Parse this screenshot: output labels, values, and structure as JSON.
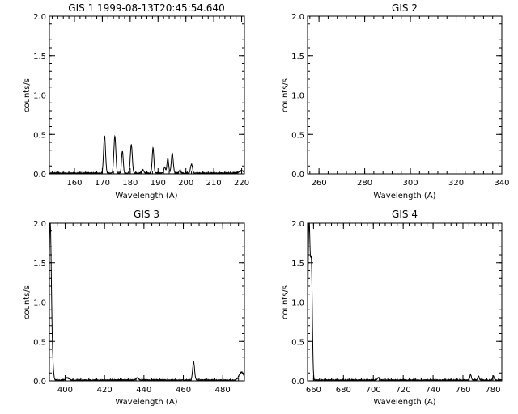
{
  "figure": {
    "background": "#ffffff",
    "ink": "#000000"
  },
  "chart_data": [
    {
      "type": "line",
      "title": "GIS 1 1999-08-13T20:45:54.640",
      "xlabel": "Wavelength (A)",
      "ylabel": "counts/s",
      "xlim": [
        151,
        221
      ],
      "ylim": [
        0,
        2.0
      ],
      "xticks": [
        160,
        170,
        180,
        190,
        200,
        210,
        220
      ],
      "yticks": [
        0.0,
        0.5,
        1.0,
        1.5,
        2.0
      ],
      "ytick_labels": [
        "0.0",
        "0.5",
        "1.0",
        "1.5",
        "2.0"
      ],
      "grid": false,
      "series": [
        {
          "baseline": 0.01,
          "peaks": [
            {
              "x": 170.8,
              "y": 0.47,
              "w": 0.35
            },
            {
              "x": 174.5,
              "y": 0.47,
              "w": 0.35
            },
            {
              "x": 177.2,
              "y": 0.28,
              "w": 0.3
            },
            {
              "x": 180.4,
              "y": 0.36,
              "w": 0.35
            },
            {
              "x": 184.5,
              "y": 0.04,
              "w": 0.4
            },
            {
              "x": 188.2,
              "y": 0.32,
              "w": 0.3
            },
            {
              "x": 192.4,
              "y": 0.08,
              "w": 0.3
            },
            {
              "x": 193.5,
              "y": 0.19,
              "w": 0.3
            },
            {
              "x": 195.1,
              "y": 0.25,
              "w": 0.35
            },
            {
              "x": 197.9,
              "y": 0.04,
              "w": 0.3
            },
            {
              "x": 202.0,
              "y": 0.11,
              "w": 0.35
            },
            {
              "x": 220.0,
              "y": 0.03,
              "w": 0.8
            }
          ]
        }
      ]
    },
    {
      "type": "line",
      "title": "GIS 2",
      "xlabel": "Wavelength (A)",
      "ylabel": "counts/s",
      "xlim": [
        255,
        340
      ],
      "ylim": [
        0,
        2.0
      ],
      "xticks": [
        260,
        280,
        300,
        320,
        340
      ],
      "yticks": [
        0.0,
        0.5,
        1.0,
        1.5,
        2.0
      ],
      "ytick_labels": [
        "0.0",
        "0.5",
        "1.0",
        "1.5",
        "2.0"
      ],
      "grid": false,
      "series": []
    },
    {
      "type": "line",
      "title": "GIS 3",
      "xlabel": "Wavelength (A)",
      "ylabel": "counts/s",
      "xlim": [
        392,
        491
      ],
      "ylim": [
        0,
        2.0
      ],
      "xticks": [
        400,
        420,
        440,
        460,
        480
      ],
      "yticks": [
        0.0,
        0.5,
        1.0,
        1.5,
        2.0
      ],
      "ytick_labels": [
        "0.0",
        "0.5",
        "1.0",
        "1.5",
        "2.0"
      ],
      "grid": false,
      "series": [
        {
          "baseline": 0.01,
          "peaks": [
            {
              "x": 392.4,
              "y": 2.0,
              "w": 0.6
            },
            {
              "x": 393.6,
              "y": 0.15,
              "w": 0.5
            },
            {
              "x": 401.0,
              "y": 0.03,
              "w": 0.8
            },
            {
              "x": 436.6,
              "y": 0.03,
              "w": 0.6
            },
            {
              "x": 465.2,
              "y": 0.23,
              "w": 0.5
            },
            {
              "x": 489.5,
              "y": 0.1,
              "w": 1.2
            }
          ]
        }
      ]
    },
    {
      "type": "line",
      "title": "GIS 4",
      "xlabel": "Wavelength (A)",
      "ylabel": "counts/s",
      "xlim": [
        656,
        786
      ],
      "ylim": [
        0,
        2.0
      ],
      "xticks": [
        660,
        680,
        700,
        720,
        740,
        760,
        780
      ],
      "yticks": [
        0.0,
        0.5,
        1.0,
        1.5,
        2.0
      ],
      "ytick_labels": [
        "0.0",
        "0.5",
        "1.0",
        "1.5",
        "2.0"
      ],
      "grid": false,
      "series": [
        {
          "baseline": 0.01,
          "peaks": [
            {
              "x": 657.0,
              "y": 2.0,
              "w": 0.7
            },
            {
              "x": 658.6,
              "y": 1.38,
              "w": 0.6
            },
            {
              "x": 703.5,
              "y": 0.03,
              "w": 0.8
            },
            {
              "x": 765.1,
              "y": 0.07,
              "w": 0.5
            },
            {
              "x": 770.4,
              "y": 0.05,
              "w": 0.5
            },
            {
              "x": 780.3,
              "y": 0.05,
              "w": 0.5
            }
          ]
        }
      ]
    }
  ]
}
